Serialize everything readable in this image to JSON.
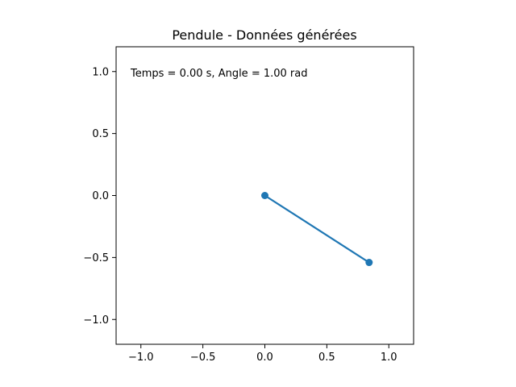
{
  "chart_data": {
    "type": "line",
    "title": "Pendule - Données générées",
    "xlabel": "",
    "ylabel": "",
    "xlim": [
      -1.2,
      1.2
    ],
    "ylim": [
      -1.2,
      1.2
    ],
    "grid": false,
    "x_ticks": [
      -1.0,
      -0.5,
      0.0,
      0.5,
      1.0
    ],
    "x_tick_labels": [
      "−1.0",
      "−0.5",
      "0.0",
      "0.5",
      "1.0"
    ],
    "y_ticks": [
      1.0,
      0.5,
      0.0,
      -0.5,
      -1.0
    ],
    "y_tick_labels": [
      "1.0",
      "0.5",
      "0.0",
      "−0.5",
      "−1.0"
    ],
    "series": [
      {
        "x": [
          0.0,
          0.841
        ],
        "y": [
          0.0,
          -0.54
        ],
        "color": "#1f77b4",
        "marker": "o"
      }
    ],
    "annotation": "Temps = 0.00 s, Angle = 1.00 rad"
  }
}
